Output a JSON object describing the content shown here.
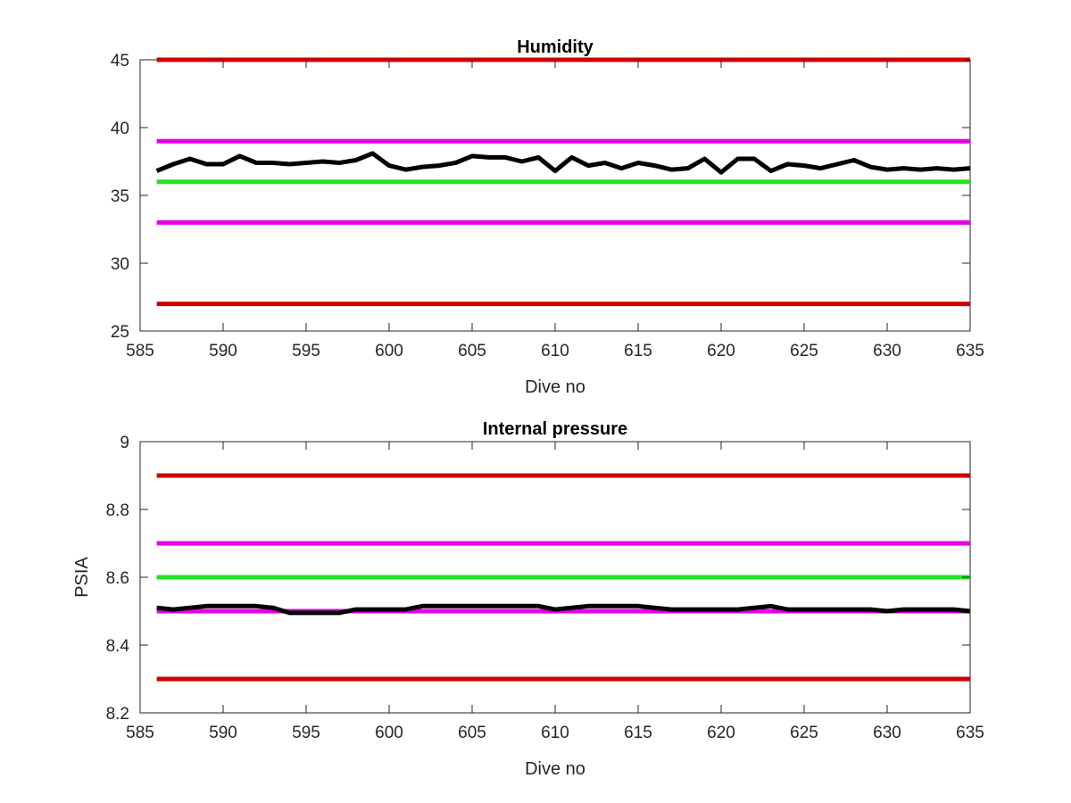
{
  "chart_data": [
    {
      "type": "line",
      "title": "Humidity",
      "xlabel": "Dive no",
      "ylabel": "",
      "xlim": [
        585,
        635
      ],
      "ylim": [
        25,
        45
      ],
      "xticks": [
        "585",
        "590",
        "595",
        "600",
        "605",
        "610",
        "615",
        "620",
        "625",
        "630",
        "635"
      ],
      "yticks": [
        "25",
        "30",
        "35",
        "40",
        "45"
      ],
      "grid": false,
      "thresholds": [
        {
          "value": 45,
          "color": "#cc0000"
        },
        {
          "value": 39,
          "color": "#e600e6"
        },
        {
          "value": 36,
          "color": "#1ee61e"
        },
        {
          "value": 33,
          "color": "#e600e6"
        },
        {
          "value": 27,
          "color": "#cc0000"
        }
      ],
      "series": [
        {
          "color": "#000000",
          "x": [
            586,
            587,
            588,
            589,
            590,
            591,
            592,
            593,
            594,
            595,
            596,
            597,
            598,
            599,
            600,
            601,
            602,
            603,
            604,
            605,
            606,
            607,
            608,
            609,
            610,
            611,
            612,
            613,
            614,
            615,
            616,
            617,
            618,
            619,
            620,
            621,
            622,
            623,
            624,
            625,
            626,
            627,
            628,
            629,
            630,
            631,
            632,
            633,
            634,
            635
          ],
          "values": [
            36.8,
            37.3,
            37.7,
            37.3,
            37.3,
            37.9,
            37.4,
            37.4,
            37.3,
            37.4,
            37.5,
            37.4,
            37.6,
            38.1,
            37.2,
            36.9,
            37.1,
            37.2,
            37.4,
            37.9,
            37.8,
            37.8,
            37.5,
            37.8,
            36.8,
            37.8,
            37.2,
            37.4,
            37.0,
            37.4,
            37.2,
            36.9,
            37.0,
            37.7,
            36.7,
            37.7,
            37.7,
            36.8,
            37.3,
            37.2,
            37.0,
            37.3,
            37.6,
            37.1,
            36.9,
            37.0,
            36.9,
            37.0,
            36.9,
            37.0
          ]
        }
      ]
    },
    {
      "type": "line",
      "title": "Internal pressure",
      "xlabel": "Dive no",
      "ylabel": "PSIA",
      "xlim": [
        585,
        635
      ],
      "ylim": [
        8.2,
        9.0
      ],
      "xticks": [
        "585",
        "590",
        "595",
        "600",
        "605",
        "610",
        "615",
        "620",
        "625",
        "630",
        "635"
      ],
      "yticks": [
        "8.2",
        "8.4",
        "8.6",
        "8.8",
        "9"
      ],
      "grid": false,
      "thresholds": [
        {
          "value": 8.9,
          "color": "#cc0000"
        },
        {
          "value": 8.7,
          "color": "#e600e6"
        },
        {
          "value": 8.6,
          "color": "#1ee61e"
        },
        {
          "value": 8.5,
          "color": "#e600e6"
        },
        {
          "value": 8.3,
          "color": "#cc0000"
        }
      ],
      "series": [
        {
          "color": "#000000",
          "x": [
            586,
            587,
            588,
            589,
            590,
            591,
            592,
            593,
            594,
            595,
            596,
            597,
            598,
            599,
            600,
            601,
            602,
            603,
            604,
            605,
            606,
            607,
            608,
            609,
            610,
            611,
            612,
            613,
            614,
            615,
            616,
            617,
            618,
            619,
            620,
            621,
            622,
            623,
            624,
            625,
            626,
            627,
            628,
            629,
            630,
            631,
            632,
            633,
            634,
            635
          ],
          "values": [
            8.51,
            8.505,
            8.51,
            8.515,
            8.515,
            8.515,
            8.515,
            8.51,
            8.495,
            8.495,
            8.495,
            8.495,
            8.505,
            8.505,
            8.505,
            8.505,
            8.515,
            8.515,
            8.515,
            8.515,
            8.515,
            8.515,
            8.515,
            8.515,
            8.505,
            8.51,
            8.515,
            8.515,
            8.515,
            8.515,
            8.51,
            8.505,
            8.505,
            8.505,
            8.505,
            8.505,
            8.51,
            8.515,
            8.505,
            8.505,
            8.505,
            8.505,
            8.505,
            8.505,
            8.5,
            8.505,
            8.505,
            8.505,
            8.505,
            8.5
          ]
        }
      ]
    }
  ]
}
